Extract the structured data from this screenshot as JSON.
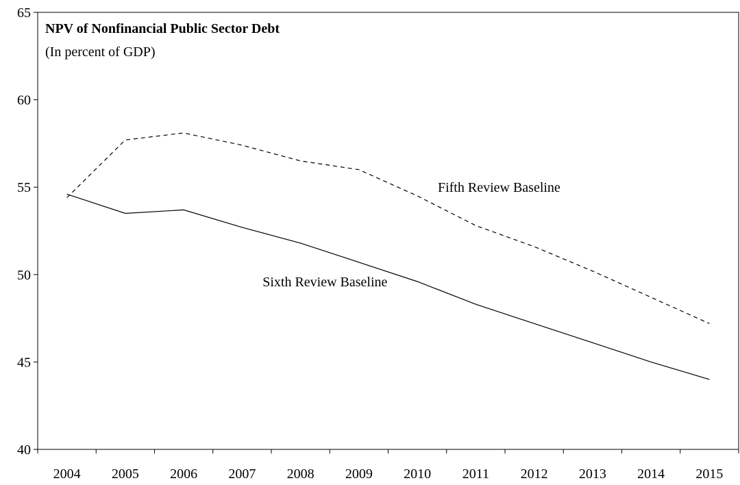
{
  "chart_data": {
    "type": "line",
    "title": "NPV of Nonfinancial Public Sector Debt",
    "subtitle": "(In percent of GDP)",
    "xlabel": "",
    "ylabel": "",
    "x": [
      "2004",
      "2005",
      "2006",
      "2007",
      "2008",
      "2009",
      "2010",
      "2011",
      "2012",
      "2013",
      "2014",
      "2015"
    ],
    "ylim": [
      40,
      65
    ],
    "yticks": [
      40,
      45,
      50,
      55,
      60,
      65
    ],
    "grid": false,
    "legend": "none",
    "series": [
      {
        "name": "Fifth Review Baseline",
        "style": "dashed",
        "color": "#000000",
        "values": [
          54.4,
          57.7,
          58.1,
          57.4,
          56.5,
          56.0,
          54.5,
          52.8,
          51.6,
          50.2,
          48.7,
          47.2
        ]
      },
      {
        "name": "Sixth Review Baseline",
        "style": "solid",
        "color": "#000000",
        "values": [
          54.6,
          53.5,
          53.7,
          52.7,
          51.8,
          50.7,
          49.6,
          48.3,
          47.2,
          46.1,
          45.0,
          44.0
        ]
      }
    ]
  }
}
